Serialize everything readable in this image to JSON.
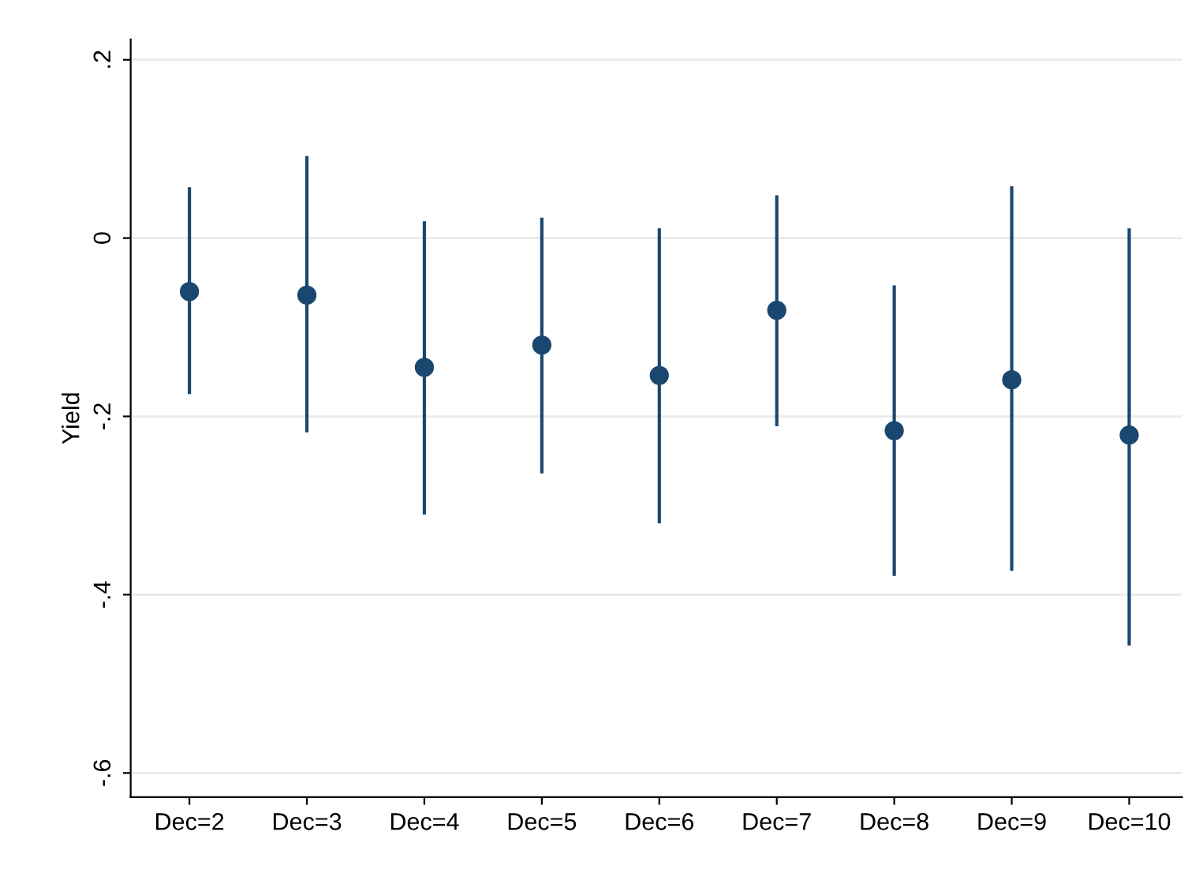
{
  "chart_data": {
    "type": "scatter",
    "ylabel": "Yield",
    "categories": [
      "Dec=2",
      "Dec=3",
      "Dec=4",
      "Dec=5",
      "Dec=6",
      "Dec=7",
      "Dec=8",
      "Dec=9",
      "Dec=10"
    ],
    "series": [
      {
        "color": "#1a476f",
        "values": [
          -0.06,
          -0.064,
          -0.145,
          -0.12,
          -0.154,
          -0.081,
          -0.216,
          -0.159,
          -0.221
        ],
        "errors": [
          [
            -0.175,
            0.057
          ],
          [
            -0.218,
            0.092
          ],
          [
            -0.31,
            0.019
          ],
          [
            -0.264,
            0.023
          ],
          [
            -0.32,
            0.011
          ],
          [
            -0.211,
            0.048
          ],
          [
            -0.379,
            -0.053
          ],
          [
            -0.373,
            0.058
          ],
          [
            -0.457,
            0.011
          ]
        ]
      }
    ],
    "ylim": [
      -0.627,
      0.223
    ],
    "yticks": [
      {
        "value": -0.6,
        "label": "-.6"
      },
      {
        "value": -0.4,
        "label": "-.4"
      },
      {
        "value": -0.2,
        "label": "-.2"
      },
      0,
      {
        "value": 0.2,
        "label": ".2"
      }
    ],
    "grid": "y",
    "marker": "circle",
    "legend": false
  }
}
